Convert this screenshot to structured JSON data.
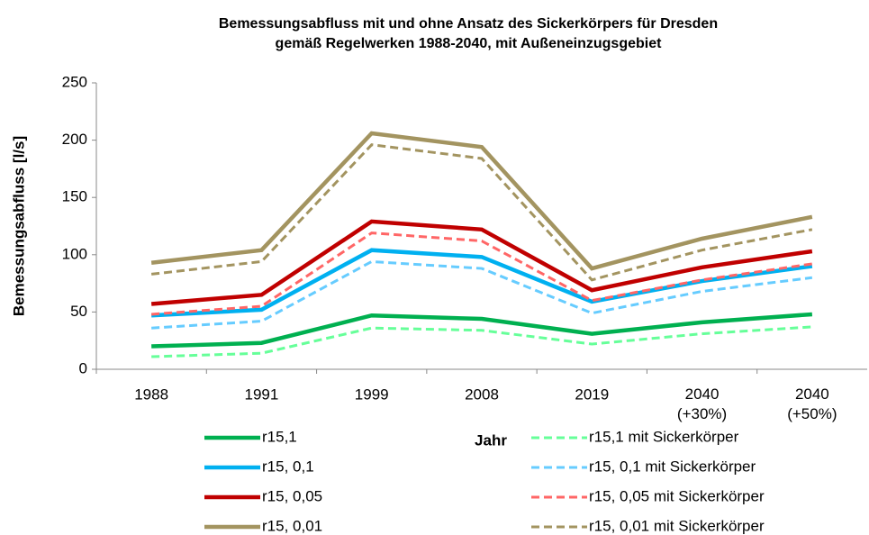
{
  "chart_data": {
    "type": "line",
    "title": "Bemessungsabfluss mit und ohne Ansatz des Sickerkörpers für Dresden\ngemäß Regelwerken 1988-2040, mit Außeneinzugsgebiet",
    "x_label": "Jahr",
    "y_label": "Bemessungsabfluss [l/s]",
    "categories": [
      "1988",
      "1991",
      "1999",
      "2008",
      "2019",
      "2040\n(+30%)",
      "2040\n(+50%)"
    ],
    "ylim": [
      0,
      250
    ],
    "yticks": [
      0,
      50,
      100,
      150,
      200,
      250
    ],
    "grid": false,
    "series": [
      {
        "name": "r15,1",
        "color": "#00b050",
        "dash": false,
        "values": [
          20,
          23,
          47,
          44,
          31,
          41,
          48
        ]
      },
      {
        "name": "r15,1 mit Sickerkörper",
        "color": "#66ff99",
        "dash": true,
        "values": [
          11,
          14,
          36,
          34,
          22,
          31,
          37
        ]
      },
      {
        "name": "r15, 0,1",
        "color": "#00b0f0",
        "dash": false,
        "values": [
          47,
          52,
          104,
          98,
          59,
          77,
          90
        ]
      },
      {
        "name": "r15, 0,1 mit Sickerkörper",
        "color": "#66ccff",
        "dash": true,
        "values": [
          36,
          42,
          94,
          88,
          49,
          68,
          80
        ]
      },
      {
        "name": "r15, 0,05",
        "color": "#c00000",
        "dash": false,
        "values": [
          57,
          65,
          129,
          122,
          69,
          89,
          103
        ]
      },
      {
        "name": "r15, 0,05 mit Sickerkörper",
        "color": "#ff6666",
        "dash": true,
        "values": [
          48,
          55,
          119,
          112,
          60,
          78,
          92
        ]
      },
      {
        "name": "r15, 0,01",
        "color": "#a39460",
        "dash": false,
        "values": [
          93,
          104,
          206,
          194,
          88,
          114,
          133
        ]
      },
      {
        "name": "r15, 0,01 mit Sickerkörper",
        "color": "#a39460",
        "dash": true,
        "values": [
          83,
          94,
          196,
          184,
          78,
          104,
          122
        ]
      }
    ]
  }
}
